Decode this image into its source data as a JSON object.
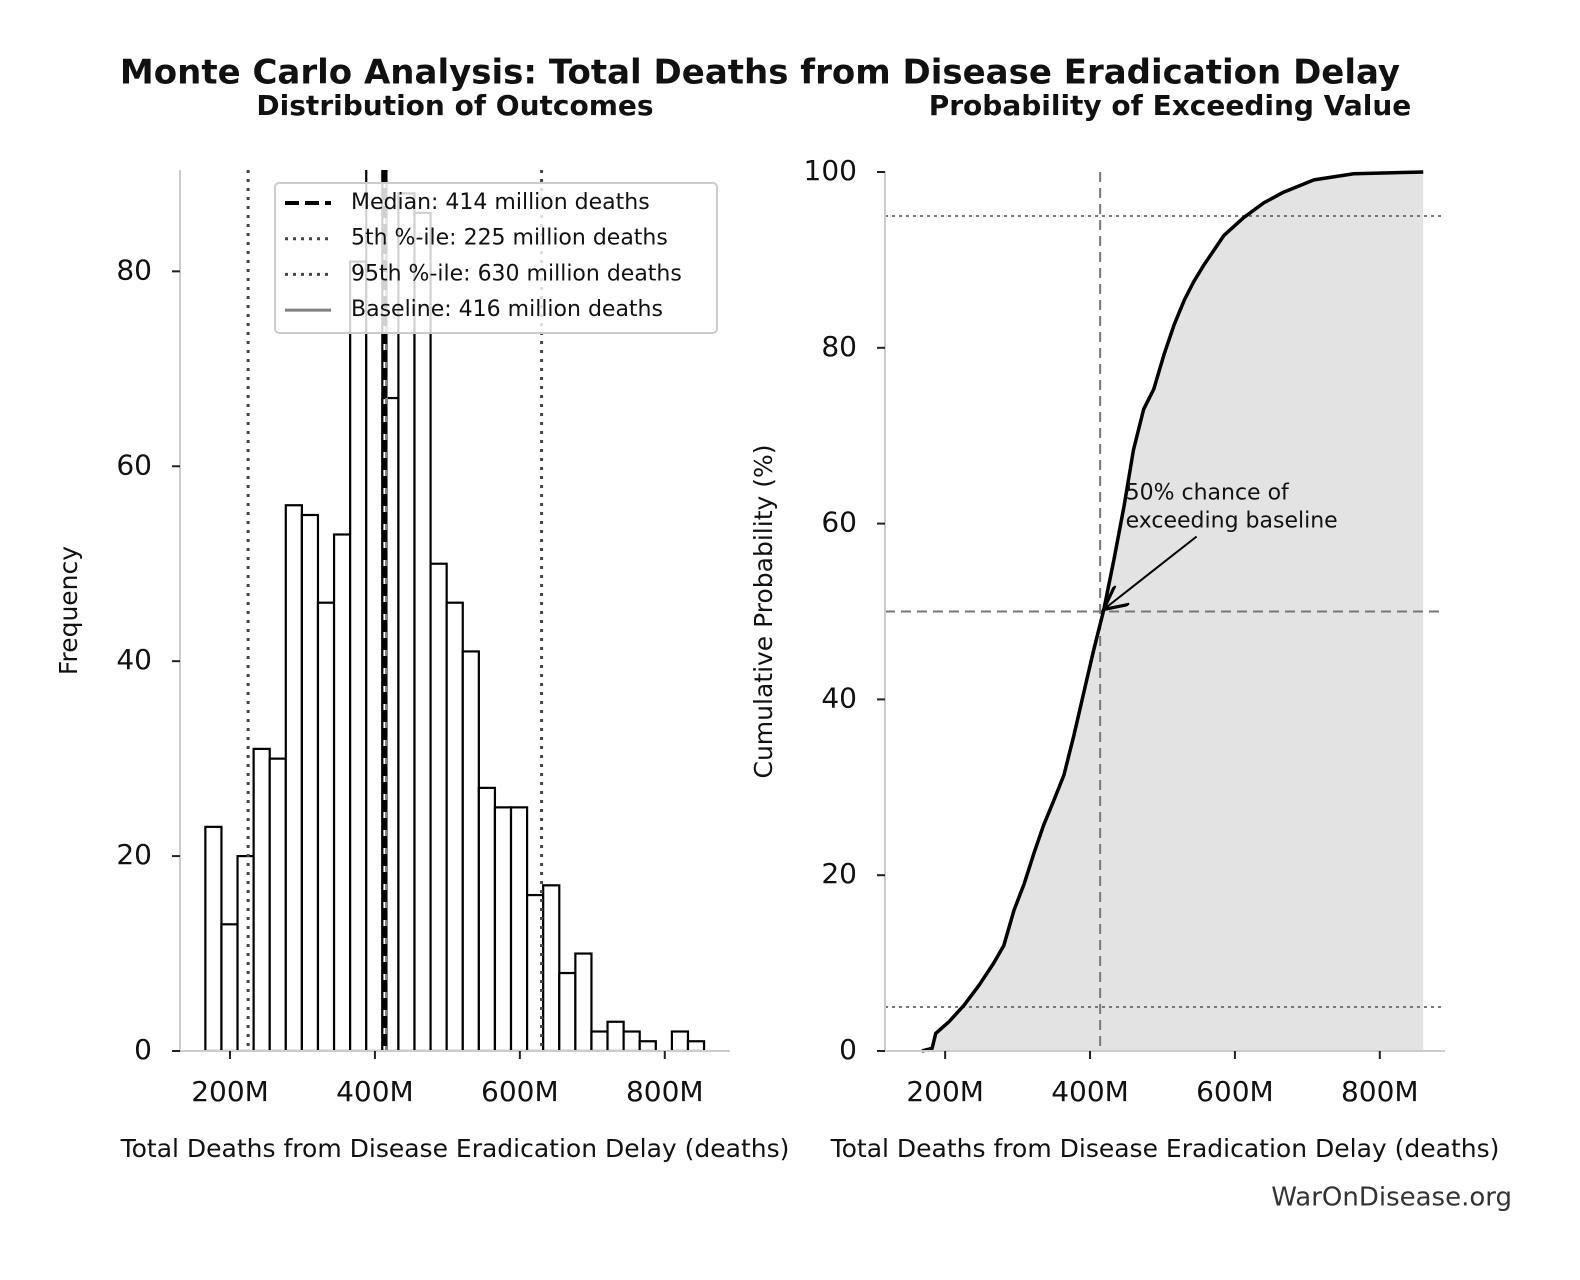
{
  "title": "Monte Carlo Analysis: Total Deaths from Disease Eradication Delay",
  "footer": "WarOnDisease.org",
  "chart_data": [
    {
      "type": "histogram",
      "title": "Distribution of Outcomes",
      "xlabel": "Total Deaths from Disease Eradication Delay (deaths)",
      "ylabel": "Frequency",
      "bins": [
        166000000,
        188200000,
        210400000,
        232600000,
        254800000,
        277000000,
        299200000,
        321400000,
        343600000,
        365800000,
        388000000,
        410200000,
        432400000,
        454600000,
        476800000,
        499000000,
        521200000,
        543400000,
        565600000,
        587800000,
        610000000,
        632200000,
        654400000,
        676600000,
        698800000,
        721000000,
        743200000,
        765400000,
        787600000,
        809800000,
        832000000,
        854200000
      ],
      "counts": [
        23,
        13,
        20,
        31,
        30,
        56,
        55,
        46,
        53,
        81,
        95,
        67,
        88,
        86,
        50,
        46,
        41,
        27,
        25,
        25,
        16,
        17,
        8,
        10,
        2,
        3,
        2,
        1,
        0,
        2,
        1
      ],
      "color": "#ffffff",
      "edgecolor": "#000000",
      "xlim": [
        131000000,
        890000000
      ],
      "ylim": [
        0,
        90.4
      ],
      "xticks": [
        {
          "value": 200000000,
          "label": "200M"
        },
        {
          "value": 400000000,
          "label": "400M"
        },
        {
          "value": 600000000,
          "label": "600M"
        },
        {
          "value": 800000000,
          "label": "800M"
        }
      ],
      "yticks": [
        0,
        20,
        40,
        60,
        80
      ],
      "vlines": [
        {
          "name": "Median: 414 million deaths",
          "value": 414000000,
          "color": "#000000",
          "style": "dashed"
        },
        {
          "name": "5th %-ile: 225 million deaths",
          "value": 225000000,
          "color": "#444444",
          "style": "dotted"
        },
        {
          "name": "95th %-ile: 630 million deaths",
          "value": 630000000,
          "color": "#444444",
          "style": "dotted"
        },
        {
          "name": "Baseline: 416 million deaths",
          "value": 416000000,
          "color": "#808080",
          "style": "solid"
        }
      ],
      "legend": "upper right"
    },
    {
      "type": "line",
      "title": "Probability of Exceeding Value",
      "xlabel": "Total Deaths from Disease Eradication Delay (deaths)",
      "ylabel": "Cumulative Probability (%)",
      "x": [
        168000000,
        182000000,
        187000000,
        205000000,
        226000000,
        247000000,
        267000000,
        281000000,
        295000000,
        309000000,
        323000000,
        336000000,
        350000000,
        364000000,
        378000000,
        392000000,
        405000000,
        419000000,
        433000000,
        447000000,
        460000000,
        474000000,
        488000000,
        502000000,
        516000000,
        530000000,
        543000000,
        557000000,
        571000000,
        585000000,
        612000000,
        640000000,
        667000000,
        709000000,
        764000000,
        860000000
      ],
      "values": [
        0,
        0.3,
        2,
        3.3,
        5.2,
        7.5,
        10,
        12,
        16,
        19,
        22.6,
        25.7,
        28.5,
        31.4,
        36,
        41,
        45.6,
        50.2,
        55.9,
        62,
        68.4,
        73,
        75.3,
        79.2,
        82.6,
        85.4,
        87.5,
        89.4,
        91.1,
        92.8,
        94.8,
        96.5,
        97.7,
        99.1,
        99.8,
        100
      ],
      "color": "#000000",
      "fill": "#e3e3e3",
      "xlim": [
        117000000,
        890000000
      ],
      "ylim": [
        0,
        100
      ],
      "xticks": [
        {
          "value": 200000000,
          "label": "200M"
        },
        {
          "value": 400000000,
          "label": "400M"
        },
        {
          "value": 600000000,
          "label": "600M"
        },
        {
          "value": 800000000,
          "label": "800M"
        }
      ],
      "yticks": [
        0,
        20,
        40,
        60,
        80,
        100
      ],
      "hlines": [
        {
          "value": 5,
          "style": "dotted"
        },
        {
          "value": 95,
          "style": "dotted"
        },
        {
          "value": 50,
          "style": "dashed"
        }
      ],
      "vlines": [
        {
          "value": 414000000,
          "style": "dashed"
        }
      ],
      "annotation": {
        "text": [
          "50% chance of",
          "exceeding baseline"
        ],
        "x": 416000000,
        "y": 50
      }
    }
  ]
}
